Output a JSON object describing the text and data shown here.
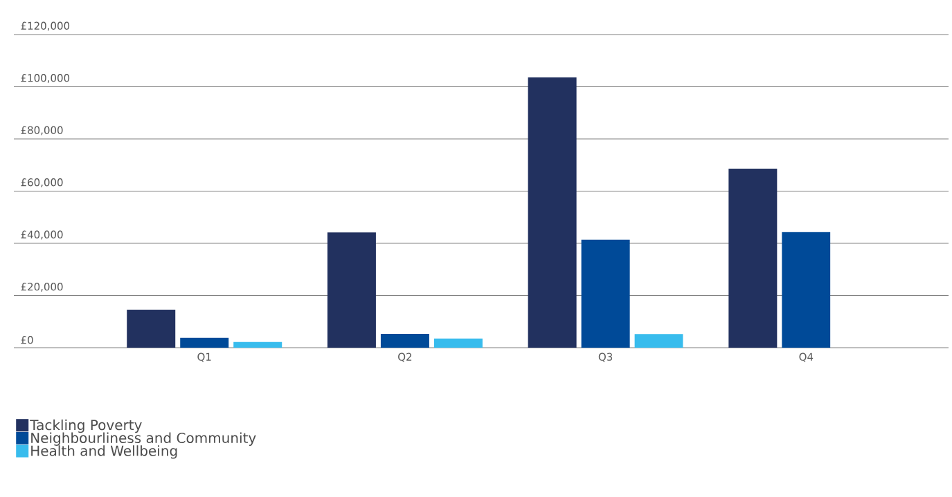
{
  "chart_data": {
    "type": "bar",
    "categories": [
      "Q1",
      "Q2",
      "Q3",
      "Q4"
    ],
    "series": [
      {
        "name": "Tackling Poverty",
        "color": "#22315f",
        "values": [
          14600,
          44200,
          103600,
          68600
        ]
      },
      {
        "name": "Neighbourliness and Community",
        "color": "#004a98",
        "values": [
          3800,
          5300,
          41400,
          44300
        ]
      },
      {
        "name": "Health and Wellbeing",
        "color": "#38bced",
        "values": [
          2200,
          3500,
          5200,
          null
        ]
      }
    ],
    "ylim": [
      0,
      120000
    ],
    "yticks": [
      {
        "value": 0,
        "label": "£0"
      },
      {
        "value": 20000,
        "label": "£20,000"
      },
      {
        "value": 40000,
        "label": "£40,000"
      },
      {
        "value": 60000,
        "label": "£60,000"
      },
      {
        "value": 80000,
        "label": "£80,000"
      },
      {
        "value": 100000,
        "label": "£100,000"
      },
      {
        "value": 120000,
        "label": "£120,000"
      }
    ],
    "grid": "y",
    "legend": "bottom left"
  }
}
